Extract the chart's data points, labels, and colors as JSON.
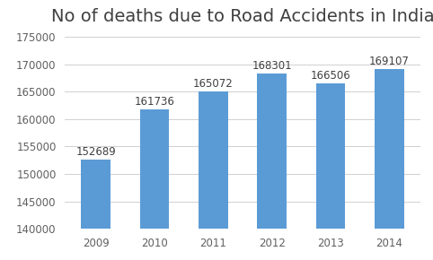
{
  "title": "No of deaths due to Road Accidents in India",
  "categories": [
    "2009",
    "2010",
    "2011",
    "2012",
    "2013",
    "2014"
  ],
  "values": [
    152689,
    161736,
    165072,
    168301,
    166506,
    169107
  ],
  "bar_color": "#5B9BD5",
  "ylim": [
    140000,
    176000
  ],
  "yticks": [
    140000,
    145000,
    150000,
    155000,
    160000,
    165000,
    170000,
    175000
  ],
  "background_color": "#ffffff",
  "title_fontsize": 14,
  "label_fontsize": 8.5,
  "tick_fontsize": 8.5,
  "title_color": "#404040",
  "tick_color": "#606060"
}
